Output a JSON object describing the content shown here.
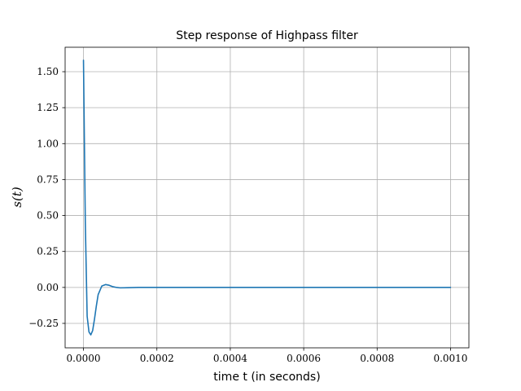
{
  "chart_data": {
    "type": "line",
    "title": "Step response of Highpass filter",
    "xlabel": "time t (in seconds)",
    "ylabel": "s(t)",
    "xlim": [
      -5e-05,
      0.00105
    ],
    "ylim": [
      -0.42,
      1.67
    ],
    "xticks": [
      0.0,
      0.0002,
      0.0004,
      0.0006,
      0.0008,
      0.001
    ],
    "xtick_labels": [
      "0.0000",
      "0.0002",
      "0.0004",
      "0.0006",
      "0.0008",
      "0.0010"
    ],
    "yticks": [
      -0.25,
      0.0,
      0.25,
      0.5,
      0.75,
      1.0,
      1.25,
      1.5
    ],
    "ytick_labels": [
      "−0.25",
      "0.00",
      "0.25",
      "0.50",
      "0.75",
      "1.00",
      "1.25",
      "1.50"
    ],
    "grid": true,
    "series": [
      {
        "color": "#1f77b4",
        "x": [
          0.0,
          5e-06,
          1e-05,
          1.5e-05,
          2e-05,
          2.5e-05,
          3e-05,
          3.5e-05,
          4e-05,
          5e-05,
          6e-05,
          7e-05,
          8e-05,
          9e-05,
          0.0001,
          0.00012,
          0.00015,
          0.0002,
          0.0003,
          0.0005,
          0.0007,
          0.001
        ],
        "y": [
          1.58,
          0.45,
          -0.2,
          -0.31,
          -0.33,
          -0.3,
          -0.22,
          -0.13,
          -0.05,
          0.01,
          0.02,
          0.015,
          0.005,
          0.0,
          -0.003,
          -0.002,
          0.0,
          0.0,
          0.0,
          0.0,
          0.0,
          0.0
        ]
      }
    ]
  }
}
